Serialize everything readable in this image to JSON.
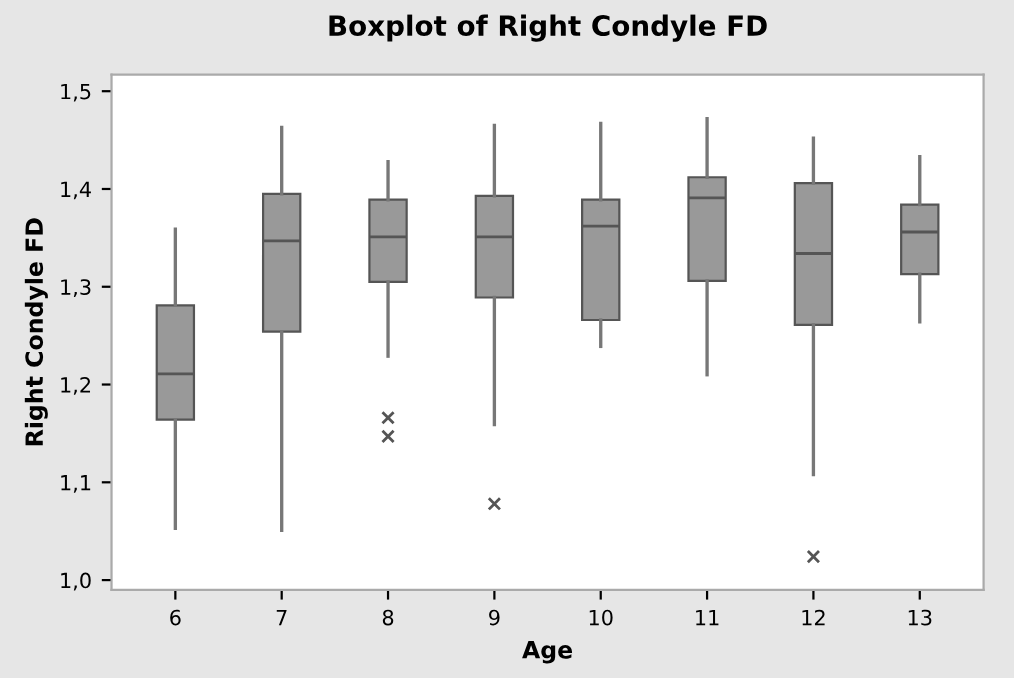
{
  "chart_data": {
    "type": "box",
    "title": "Boxplot of Right Condyle FD",
    "xlabel": "Age",
    "ylabel": "Right Condyle FD",
    "categories": [
      "6",
      "7",
      "8",
      "9",
      "10",
      "11",
      "12",
      "13"
    ],
    "boxes": [
      {
        "low": 1.053,
        "q1": 1.164,
        "median": 1.211,
        "q3": 1.281,
        "high": 1.359
      },
      {
        "low": 1.051,
        "q1": 1.254,
        "median": 1.347,
        "q3": 1.395,
        "high": 1.463
      },
      {
        "low": 1.229,
        "q1": 1.305,
        "median": 1.351,
        "q3": 1.389,
        "high": 1.428,
        "outliers": [
          1.166,
          1.147
        ]
      },
      {
        "low": 1.159,
        "q1": 1.289,
        "median": 1.351,
        "q3": 1.393,
        "high": 1.465,
        "outliers": [
          1.078
        ]
      },
      {
        "low": 1.239,
        "q1": 1.266,
        "median": 1.362,
        "q3": 1.389,
        "high": 1.467
      },
      {
        "low": 1.21,
        "q1": 1.306,
        "median": 1.391,
        "q3": 1.412,
        "high": 1.472
      },
      {
        "low": 1.108,
        "q1": 1.261,
        "median": 1.334,
        "q3": 1.406,
        "high": 1.452,
        "outliers": [
          1.024
        ]
      },
      {
        "low": 1.264,
        "q1": 1.313,
        "median": 1.356,
        "q3": 1.384,
        "high": 1.433
      }
    ],
    "color": "#999999",
    "ylim": [
      0.99,
      1.517
    ],
    "yticks": [
      {
        "value": 1.0,
        "label": "1,0"
      },
      {
        "value": 1.1,
        "label": "1,1"
      },
      {
        "value": 1.2,
        "label": "1,2"
      },
      {
        "value": 1.3,
        "label": "1,3"
      },
      {
        "value": 1.4,
        "label": "1,4"
      },
      {
        "value": 1.5,
        "label": "1,5"
      }
    ],
    "marker": "cross",
    "grid": false
  }
}
